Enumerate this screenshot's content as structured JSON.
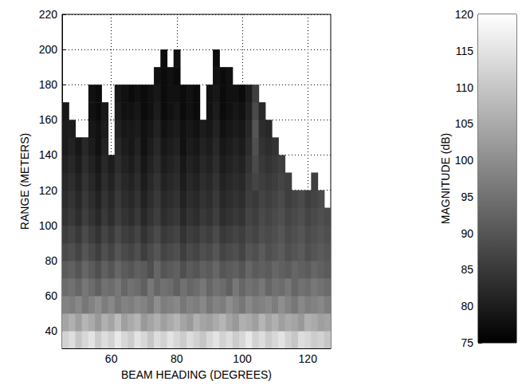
{
  "chart_data": {
    "type": "heatmap",
    "x_label": "BEAM HEADING (DEGREES)",
    "y_label": "RANGE (METERS)",
    "x": [
      46,
      48,
      50,
      52,
      54,
      56,
      58,
      60,
      62,
      64,
      66,
      68,
      70,
      72,
      74,
      76,
      78,
      80,
      82,
      84,
      86,
      88,
      90,
      92,
      94,
      96,
      98,
      100,
      102,
      104,
      106,
      108,
      110,
      112,
      114,
      116,
      118,
      120,
      122,
      124,
      126
    ],
    "y": [
      35,
      45,
      55,
      65,
      75,
      85,
      95,
      105,
      115,
      125,
      135,
      145,
      155,
      165,
      175,
      185,
      195
    ],
    "values": [
      [
        112,
        114,
        110,
        113,
        115,
        111,
        114,
        112,
        116,
        113,
        111,
        115,
        113,
        110,
        114,
        112,
        115,
        113,
        111,
        114,
        112,
        110,
        113,
        115,
        112,
        114,
        111,
        113,
        116,
        112,
        114,
        111,
        113,
        115,
        112,
        110,
        114,
        113,
        111,
        112,
        110
      ],
      [
        104,
        106,
        103,
        107,
        105,
        102,
        106,
        104,
        108,
        103,
        105,
        107,
        102,
        104,
        106,
        103,
        105,
        107,
        104,
        102,
        106,
        104,
        103,
        105,
        107,
        104,
        102,
        106,
        105,
        103,
        107,
        104,
        106,
        103,
        105,
        104,
        102,
        106,
        105,
        103,
        104
      ],
      [
        98,
        97,
        99,
        96,
        98,
        100,
        97,
        99,
        96,
        98,
        97,
        99,
        98,
        96,
        100,
        97,
        98,
        99,
        96,
        98,
        97,
        99,
        96,
        98,
        97,
        100,
        98,
        96,
        99,
        97,
        98,
        99,
        97,
        100,
        98,
        96,
        99,
        97,
        98,
        99,
        97
      ],
      [
        94,
        95,
        93,
        96,
        94,
        92,
        95,
        94,
        96,
        93,
        95,
        94,
        92,
        96,
        93,
        95,
        94,
        92,
        95,
        93,
        94,
        96,
        93,
        95,
        94,
        92,
        96,
        93,
        95,
        94,
        96,
        93,
        95,
        94,
        96,
        93,
        95,
        94,
        96,
        95,
        94
      ],
      [
        91,
        92,
        90,
        93,
        91,
        89,
        92,
        90,
        93,
        91,
        90,
        92,
        91,
        89,
        93,
        90,
        91,
        92,
        89,
        91,
        90,
        92,
        91,
        93,
        90,
        91,
        92,
        90,
        93,
        91,
        92,
        91,
        93,
        92,
        91,
        93,
        92,
        91,
        93,
        92,
        91
      ],
      [
        88,
        89,
        87,
        90,
        88,
        86,
        89,
        87,
        90,
        88,
        87,
        89,
        86,
        88,
        90,
        87,
        88,
        89,
        86,
        88,
        87,
        89,
        88,
        90,
        87,
        88,
        89,
        87,
        90,
        89,
        91,
        89,
        90,
        91,
        89,
        90,
        91,
        89,
        90,
        91,
        90
      ],
      [
        86,
        87,
        85,
        88,
        86,
        84,
        87,
        85,
        88,
        86,
        85,
        87,
        84,
        86,
        88,
        85,
        86,
        87,
        84,
        86,
        85,
        87,
        86,
        88,
        85,
        86,
        87,
        86,
        88,
        87,
        89,
        88,
        89,
        90,
        88,
        89,
        90,
        88,
        89,
        90,
        89
      ],
      [
        84,
        85,
        83,
        86,
        84,
        82,
        85,
        83,
        86,
        84,
        83,
        85,
        82,
        84,
        86,
        83,
        84,
        85,
        82,
        84,
        83,
        85,
        84,
        86,
        83,
        84,
        85,
        84,
        87,
        86,
        88,
        87,
        88,
        89,
        87,
        88,
        89,
        87,
        88,
        89,
        88
      ],
      [
        83,
        84,
        82,
        85,
        83,
        81,
        84,
        82,
        85,
        83,
        82,
        84,
        81,
        83,
        85,
        82,
        83,
        84,
        81,
        83,
        82,
        84,
        83,
        85,
        82,
        83,
        84,
        83,
        86,
        85,
        87,
        86,
        87,
        88,
        86,
        87,
        88,
        86,
        87,
        88,
        null
      ],
      [
        82,
        83,
        81,
        84,
        82,
        80,
        83,
        81,
        84,
        82,
        81,
        83,
        80,
        82,
        84,
        81,
        82,
        83,
        80,
        82,
        81,
        83,
        82,
        84,
        81,
        82,
        83,
        82,
        85,
        87,
        86,
        85,
        86,
        87,
        86,
        null,
        null,
        null,
        86,
        null,
        null
      ],
      [
        81,
        82,
        80,
        83,
        81,
        79,
        82,
        80,
        83,
        81,
        80,
        82,
        79,
        81,
        83,
        80,
        81,
        82,
        79,
        81,
        80,
        82,
        81,
        83,
        80,
        81,
        82,
        81,
        84,
        88,
        85,
        84,
        85,
        86,
        null,
        null,
        null,
        null,
        null,
        null,
        null
      ],
      [
        80,
        81,
        79,
        82,
        80,
        78,
        81,
        null,
        82,
        80,
        79,
        81,
        78,
        80,
        82,
        79,
        80,
        81,
        78,
        80,
        79,
        81,
        80,
        82,
        79,
        80,
        81,
        80,
        83,
        89,
        84,
        83,
        84,
        null,
        null,
        null,
        null,
        null,
        null,
        null,
        null
      ],
      [
        80,
        80,
        null,
        null,
        79,
        78,
        80,
        null,
        81,
        79,
        79,
        80,
        78,
        79,
        81,
        78,
        79,
        80,
        78,
        79,
        78,
        80,
        79,
        81,
        78,
        79,
        80,
        79,
        82,
        90,
        83,
        82,
        null,
        null,
        null,
        null,
        null,
        null,
        null,
        null,
        null
      ],
      [
        79,
        null,
        null,
        null,
        78,
        77,
        79,
        null,
        80,
        78,
        78,
        79,
        77,
        78,
        80,
        77,
        78,
        79,
        77,
        78,
        77,
        null,
        78,
        80,
        77,
        78,
        79,
        78,
        81,
        88,
        82,
        null,
        null,
        null,
        null,
        null,
        null,
        null,
        null,
        null,
        null
      ],
      [
        null,
        null,
        null,
        null,
        78,
        77,
        null,
        null,
        79,
        78,
        77,
        78,
        77,
        78,
        79,
        77,
        78,
        78,
        77,
        78,
        77,
        null,
        78,
        79,
        77,
        78,
        78,
        77,
        80,
        86,
        null,
        null,
        null,
        null,
        null,
        null,
        null,
        null,
        null,
        null,
        null
      ],
      [
        null,
        null,
        null,
        null,
        null,
        null,
        null,
        null,
        null,
        null,
        null,
        null,
        null,
        null,
        78,
        77,
        78,
        77,
        null,
        null,
        null,
        null,
        null,
        78,
        77,
        78,
        null,
        null,
        null,
        null,
        null,
        null,
        null,
        null,
        null,
        null,
        null,
        null,
        null,
        null,
        null
      ],
      [
        null,
        null,
        null,
        null,
        null,
        null,
        null,
        null,
        null,
        null,
        null,
        null,
        null,
        null,
        null,
        77,
        null,
        78,
        null,
        null,
        null,
        null,
        null,
        77,
        null,
        null,
        null,
        null,
        null,
        null,
        null,
        null,
        null,
        null,
        null,
        null,
        null,
        null,
        null,
        null,
        null
      ]
    ],
    "xlim": [
      45,
      127
    ],
    "xticks": [
      60,
      80,
      100,
      120
    ],
    "ylim": [
      30,
      220
    ],
    "yticks": [
      40,
      60,
      80,
      100,
      120,
      140,
      160,
      180,
      200,
      220
    ],
    "grid": true,
    "colorbar": {
      "label": "MAGNITUDE (dB)",
      "range": [
        75,
        120
      ],
      "ticks": [
        75,
        80,
        85,
        90,
        95,
        100,
        105,
        110,
        115,
        120
      ]
    }
  }
}
